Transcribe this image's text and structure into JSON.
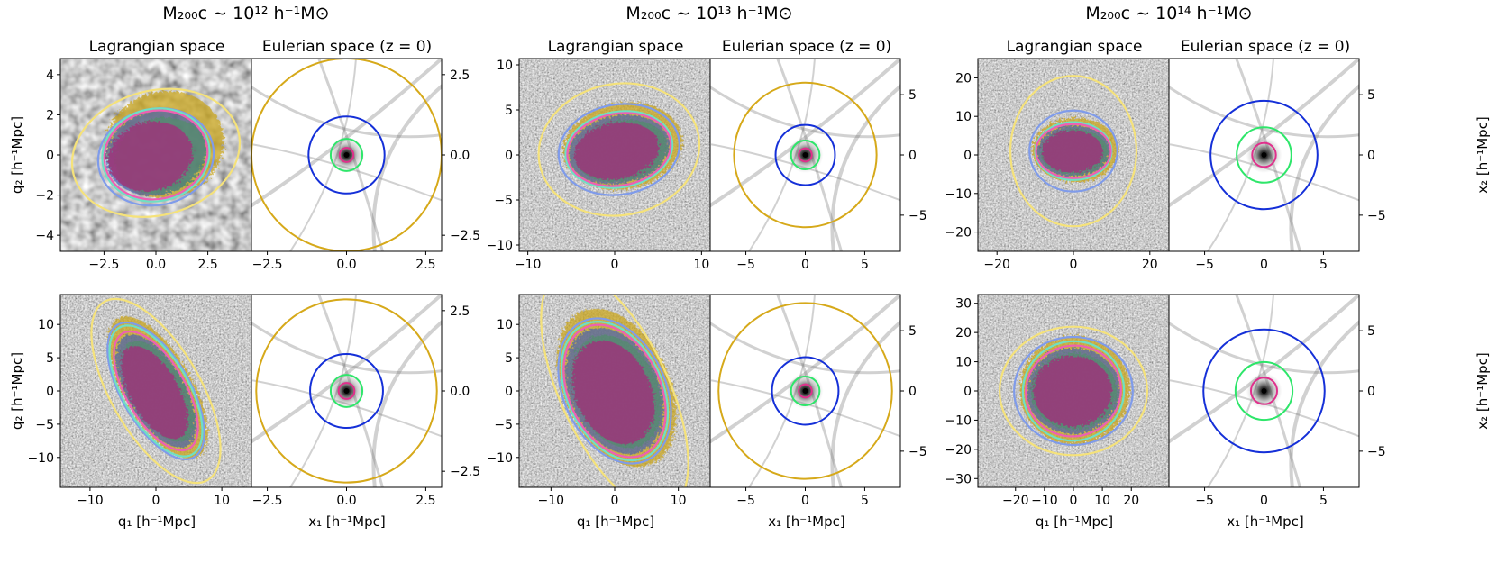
{
  "figure": {
    "columns": [
      {
        "title": "M₂₀₀c ∼ 10¹² h⁻¹M⊙"
      },
      {
        "title": "M₂₀₀c ∼ 10¹³ h⁻¹M⊙"
      },
      {
        "title": "M₂₀₀c ∼ 10¹⁴ h⁻¹M⊙"
      }
    ],
    "lagrangian_title": "Lagrangian space",
    "eulerian_title": "Eulerian space (z = 0)",
    "labels": {
      "q1": "q₁ [h⁻¹Mpc]",
      "q2": "q₂ [h⁻¹Mpc]",
      "x1": "x₁ [h⁻¹Mpc]",
      "x2": "x₂ [h⁻¹Mpc]"
    },
    "colors": {
      "yellow_fill": "#c9a316",
      "yellow_ellipse": "#f5e27a",
      "light_blue": "#7f9bea",
      "cyan": "#6ee0c4",
      "pink": "#ee5fb4",
      "green": "#2ee66a",
      "blue": "#1530d8",
      "gold": "#d6a91a",
      "magenta": "#e0308c"
    }
  },
  "chart_data": [
    {
      "type": "image",
      "panel": "row1-col1-lagrangian",
      "title": "Lagrangian space",
      "xlabel": "",
      "ylabel": "q₂ [h⁻¹Mpc]",
      "xlim": [
        -4.6,
        4.6
      ],
      "ylim": [
        -4.8,
        4.8
      ],
      "xticks": [
        -2.5,
        0.0,
        2.5
      ],
      "xtick_labels": [
        "−2.5",
        "0.0",
        "2.5"
      ],
      "yticks": [
        -4,
        -2,
        0,
        2,
        4
      ],
      "ytick_labels": [
        "−4",
        "−2",
        "0",
        "2",
        "4"
      ],
      "ellipses": [
        {
          "color": "yellow",
          "cx": 0,
          "cy": 0.1,
          "rx": 4.1,
          "ry": 3.1,
          "angle": 15
        },
        {
          "color": "light-blue",
          "cx": 0,
          "cy": -0.1,
          "rx": 2.8,
          "ry": 2.4,
          "angle": 12
        },
        {
          "color": "cyan",
          "cx": 0,
          "cy": 0,
          "rx": 2.6,
          "ry": 2.3,
          "angle": 12
        },
        {
          "color": "pink",
          "cx": 0,
          "cy": 0,
          "rx": 2.5,
          "ry": 2.2,
          "angle": 12
        }
      ]
    },
    {
      "type": "image",
      "panel": "row1-col1-eulerian",
      "title": "Eulerian space (z = 0)",
      "xlabel": "",
      "ylabel": "",
      "xlim": [
        -3.0,
        3.0
      ],
      "ylim": [
        -3.0,
        3.0
      ],
      "xticks": [
        -2.5,
        0.0,
        2.5
      ],
      "xtick_labels": [
        "−2.5",
        "0.0",
        "2.5"
      ],
      "yticks": [
        -2.5,
        0.0,
        2.5
      ],
      "ytick_labels": [
        "−2.5",
        "0.0",
        "2.5"
      ],
      "yaxis": "right",
      "circles": [
        {
          "color": "gold",
          "r": 3.0
        },
        {
          "color": "blue",
          "r": 1.2
        },
        {
          "color": "green",
          "r": 0.5
        },
        {
          "color": "magenta",
          "r": 0.22
        }
      ]
    },
    {
      "type": "image",
      "panel": "row1-col2-lagrangian",
      "title": "Lagrangian space",
      "xlabel": "",
      "ylabel": "",
      "xlim": [
        -11,
        11
      ],
      "ylim": [
        -10.7,
        10.7
      ],
      "xticks": [
        -10,
        0,
        10
      ],
      "xtick_labels": [
        "−10",
        "0",
        "10"
      ],
      "yticks": [
        -10,
        -5,
        0,
        5,
        10
      ],
      "ytick_labels": [
        "−10",
        "−5",
        "0",
        "5",
        "10"
      ],
      "ellipses": [
        {
          "color": "yellow",
          "cx": 0.5,
          "cy": 0.6,
          "rx": 9.3,
          "ry": 7.3,
          "angle": 10
        },
        {
          "color": "light-blue",
          "cx": 0.5,
          "cy": 0.6,
          "rx": 7.0,
          "ry": 5.0,
          "angle": 10
        },
        {
          "color": "cyan",
          "cx": 0.5,
          "cy": 0.6,
          "rx": 6.2,
          "ry": 4.2,
          "angle": 10
        },
        {
          "color": "pink",
          "cx": 0.5,
          "cy": 0.6,
          "rx": 6.0,
          "ry": 4.0,
          "angle": 10
        }
      ]
    },
    {
      "type": "image",
      "panel": "row1-col2-eulerian",
      "title": "Eulerian space (z = 0)",
      "xlabel": "",
      "ylabel": "",
      "xlim": [
        -8,
        8
      ],
      "ylim": [
        -8,
        8
      ],
      "xticks": [
        -5,
        0,
        5
      ],
      "xtick_labels": [
        "−5",
        "0",
        "5"
      ],
      "yticks": [
        -5,
        0,
        5
      ],
      "ytick_labels": [
        "−5",
        "0",
        "5"
      ],
      "yaxis": "right",
      "circles": [
        {
          "color": "gold",
          "r": 6.0
        },
        {
          "color": "blue",
          "r": 2.5
        },
        {
          "color": "green",
          "r": 1.2
        },
        {
          "color": "magenta",
          "r": 0.55
        }
      ]
    },
    {
      "type": "image",
      "panel": "row1-col3-lagrangian",
      "title": "Lagrangian space",
      "xlabel": "",
      "ylabel": "",
      "xlim": [
        -25,
        25
      ],
      "ylim": [
        -25,
        25
      ],
      "xticks": [
        -20,
        0,
        20
      ],
      "xtick_labels": [
        "−20",
        "0",
        "20"
      ],
      "yticks": [
        -20,
        -10,
        0,
        10,
        20
      ],
      "ytick_labels": [
        "−20",
        "−10",
        "0",
        "10",
        "20"
      ],
      "ellipses": [
        {
          "color": "yellow",
          "cx": 0,
          "cy": 1,
          "rx": 16.5,
          "ry": 19.5,
          "angle": 0
        },
        {
          "color": "light-blue",
          "cx": 0,
          "cy": 1,
          "rx": 11.5,
          "ry": 10.5,
          "angle": 0
        },
        {
          "color": "cyan",
          "cx": 0,
          "cy": 1,
          "rx": 10.0,
          "ry": 7.5,
          "angle": 0
        },
        {
          "color": "pink",
          "cx": 0,
          "cy": 1,
          "rx": 9.8,
          "ry": 7.0,
          "angle": 0
        }
      ]
    },
    {
      "type": "image",
      "panel": "row1-col3-eulerian",
      "title": "Eulerian space (z = 0)",
      "xlabel": "",
      "ylabel": "x₂ [h⁻¹Mpc]",
      "xlim": [
        -8,
        8
      ],
      "ylim": [
        -8,
        8
      ],
      "xticks": [
        -5,
        0,
        5
      ],
      "xtick_labels": [
        "−5",
        "0",
        "5"
      ],
      "yticks": [
        -5,
        0,
        5
      ],
      "ytick_labels": [
        "−5",
        "0",
        "5"
      ],
      "yaxis": "right",
      "circles": [
        {
          "color": "blue",
          "r": 4.5
        },
        {
          "color": "green",
          "r": 2.3
        },
        {
          "color": "magenta",
          "r": 1.0
        }
      ]
    },
    {
      "type": "image",
      "panel": "row2-col1-lagrangian",
      "title": "",
      "xlabel": "q₁ [h⁻¹Mpc]",
      "ylabel": "q₂ [h⁻¹Mpc]",
      "xlim": [
        -14.5,
        14.5
      ],
      "ylim": [
        -14.5,
        14.5
      ],
      "xticks": [
        -10,
        0,
        10
      ],
      "xtick_labels": [
        "−10",
        "0",
        "10"
      ],
      "yticks": [
        -10,
        -5,
        0,
        5,
        10
      ],
      "ytick_labels": [
        "−10",
        "−5",
        "0",
        "5",
        "10"
      ],
      "ellipses": [
        {
          "color": "yellow",
          "cx": 0,
          "cy": 0,
          "rx": 6.8,
          "ry": 15.5,
          "angle": 30
        },
        {
          "color": "light-blue",
          "cx": 0,
          "cy": 0,
          "rx": 5.2,
          "ry": 11.5,
          "angle": 30
        },
        {
          "color": "cyan",
          "cx": 0,
          "cy": 0,
          "rx": 5.0,
          "ry": 11.0,
          "angle": 30
        },
        {
          "color": "pink",
          "cx": 0,
          "cy": 0,
          "rx": 4.5,
          "ry": 10.0,
          "angle": 30
        }
      ]
    },
    {
      "type": "image",
      "panel": "row2-col1-eulerian",
      "title": "",
      "xlabel": "x₁ [h⁻¹Mpc]",
      "ylabel": "",
      "xlim": [
        -3.0,
        3.0
      ],
      "ylim": [
        -3.0,
        3.0
      ],
      "xticks": [
        -2.5,
        0.0,
        2.5
      ],
      "xtick_labels": [
        "−2.5",
        "0.0",
        "2.5"
      ],
      "yticks": [
        -2.5,
        0.0,
        2.5
      ],
      "ytick_labels": [
        "−2.5",
        "0.0",
        "2.5"
      ],
      "yaxis": "right",
      "circles": [
        {
          "color": "gold",
          "r": 2.85
        },
        {
          "color": "blue",
          "r": 1.15
        },
        {
          "color": "green",
          "r": 0.5
        },
        {
          "color": "magenta",
          "r": 0.25
        }
      ]
    },
    {
      "type": "image",
      "panel": "row2-col2-lagrangian",
      "title": "",
      "xlabel": "q₁ [h⁻¹Mpc]",
      "ylabel": "",
      "xlim": [
        -15,
        15
      ],
      "ylim": [
        -14.5,
        14.5
      ],
      "xticks": [
        -10,
        0,
        10
      ],
      "xtick_labels": [
        "−10",
        "0",
        "10"
      ],
      "yticks": [
        -10,
        -5,
        0,
        5,
        10
      ],
      "ytick_labels": [
        "−10",
        "−5",
        "0",
        "5",
        "10"
      ],
      "ellipses": [
        {
          "color": "yellow",
          "cx": 0,
          "cy": 0,
          "rx": 8.5,
          "ry": 19.5,
          "angle": 25
        },
        {
          "color": "light-blue",
          "cx": 0,
          "cy": 0,
          "rx": 8.0,
          "ry": 11.5,
          "angle": 25
        },
        {
          "color": "cyan",
          "cx": 0,
          "cy": 0,
          "rx": 7.5,
          "ry": 11.0,
          "angle": 25
        },
        {
          "color": "pink",
          "cx": 0,
          "cy": 0,
          "rx": 7.2,
          "ry": 10.5,
          "angle": 25
        }
      ]
    },
    {
      "type": "image",
      "panel": "row2-col2-eulerian",
      "title": "",
      "xlabel": "x₁ [h⁻¹Mpc]",
      "ylabel": "",
      "xlim": [
        -8,
        8
      ],
      "ylim": [
        -8,
        8
      ],
      "xticks": [
        -5,
        0,
        5
      ],
      "xtick_labels": [
        "−5",
        "0",
        "5"
      ],
      "yticks": [
        -5,
        0,
        5
      ],
      "ytick_labels": [
        "−5",
        "0",
        "5"
      ],
      "yaxis": "right",
      "circles": [
        {
          "color": "gold",
          "r": 7.3
        },
        {
          "color": "blue",
          "r": 2.8
        },
        {
          "color": "green",
          "r": 1.2
        },
        {
          "color": "magenta",
          "r": 0.55
        }
      ]
    },
    {
      "type": "image",
      "panel": "row2-col3-lagrangian",
      "title": "",
      "xlabel": "q₁ [h⁻¹Mpc]",
      "ylabel": "",
      "xlim": [
        -33,
        33
      ],
      "ylim": [
        -33,
        33
      ],
      "xticks": [
        -20,
        -10,
        0,
        10,
        20
      ],
      "xtick_labels": [
        "−20",
        "−10",
        "0",
        "10",
        "20"
      ],
      "yticks": [
        -30,
        -20,
        -10,
        0,
        10,
        20,
        30
      ],
      "ytick_labels": [
        "−30",
        "−20",
        "−10",
        "0",
        "10",
        "20",
        "30"
      ],
      "ellipses": [
        {
          "color": "yellow",
          "cx": 0,
          "cy": 0,
          "rx": 25.5,
          "ry": 22,
          "angle": 0
        },
        {
          "color": "light-blue",
          "cx": 0,
          "cy": 0,
          "rx": 20.5,
          "ry": 18.5,
          "angle": 0
        },
        {
          "color": "cyan",
          "cx": 0,
          "cy": 0,
          "rx": 17.5,
          "ry": 17.0,
          "angle": 15
        },
        {
          "color": "pink",
          "cx": 0,
          "cy": 0,
          "rx": 16.5,
          "ry": 15.5,
          "angle": 15
        }
      ]
    },
    {
      "type": "image",
      "panel": "row2-col3-eulerian",
      "title": "",
      "xlabel": "x₁ [h⁻¹Mpc]",
      "ylabel": "x₂ [h⁻¹Mpc]",
      "xlim": [
        -8,
        8
      ],
      "ylim": [
        -8,
        8
      ],
      "xticks": [
        -5,
        0,
        5
      ],
      "xtick_labels": [
        "−5",
        "0",
        "5"
      ],
      "yticks": [
        -5,
        0,
        5
      ],
      "ytick_labels": [
        "−5",
        "0",
        "5"
      ],
      "yaxis": "right",
      "circles": [
        {
          "color": "blue",
          "r": 5.1
        },
        {
          "color": "green",
          "r": 2.4
        },
        {
          "color": "magenta",
          "r": 1.1
        }
      ]
    }
  ]
}
